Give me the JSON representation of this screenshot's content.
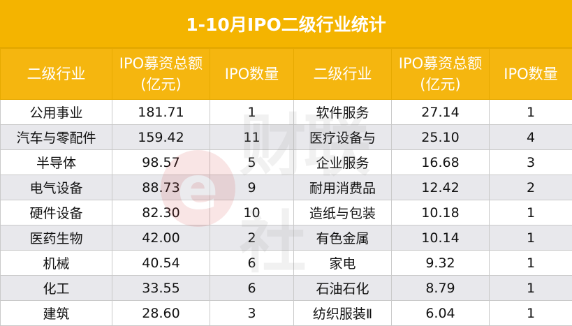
{
  "title": "1-10月IPO二级行业统计",
  "headers": {
    "industry": "二级行业",
    "amount_line1": "IPO募资总额",
    "amount_line2": "(亿元)",
    "count": "IPO数量"
  },
  "rows": [
    {
      "ind1": "公用事业",
      "amt1": "181.71",
      "cnt1": "1",
      "ind2": "软件服务",
      "amt2": "27.14",
      "cnt2": "1"
    },
    {
      "ind1": "汽车与零配件",
      "amt1": "159.42",
      "cnt1": "11",
      "ind2": "医疗设备与",
      "amt2": "25.10",
      "cnt2": "4"
    },
    {
      "ind1": "半导体",
      "amt1": "98.57",
      "cnt1": "5",
      "ind2": "企业服务",
      "amt2": "16.68",
      "cnt2": "3"
    },
    {
      "ind1": "电气设备",
      "amt1": "88.73",
      "cnt1": "9",
      "ind2": "耐用消费品",
      "amt2": "12.42",
      "cnt2": "2"
    },
    {
      "ind1": "硬件设备",
      "amt1": "82.30",
      "cnt1": "10",
      "ind2": "造纸与包装",
      "amt2": "10.18",
      "cnt2": "1"
    },
    {
      "ind1": "医药生物",
      "amt1": "42.00",
      "cnt1": "2",
      "ind2": "有色金属",
      "amt2": "10.14",
      "cnt2": "1"
    },
    {
      "ind1": "机械",
      "amt1": "40.54",
      "cnt1": "6",
      "ind2": "家电",
      "amt2": "9.32",
      "cnt2": "1"
    },
    {
      "ind1": "化工",
      "amt1": "33.55",
      "cnt1": "6",
      "ind2": "石油石化",
      "amt2": "8.79",
      "cnt2": "1"
    },
    {
      "ind1": "建筑",
      "amt1": "28.60",
      "cnt1": "3",
      "ind2": "纺织服装Ⅱ",
      "amt2": "6.04",
      "cnt2": "1"
    }
  ],
  "watermark": {
    "logo": "e",
    "text": "财联社"
  },
  "colors": {
    "header": "#F5B60F",
    "stripe": "#E8E8EC"
  }
}
